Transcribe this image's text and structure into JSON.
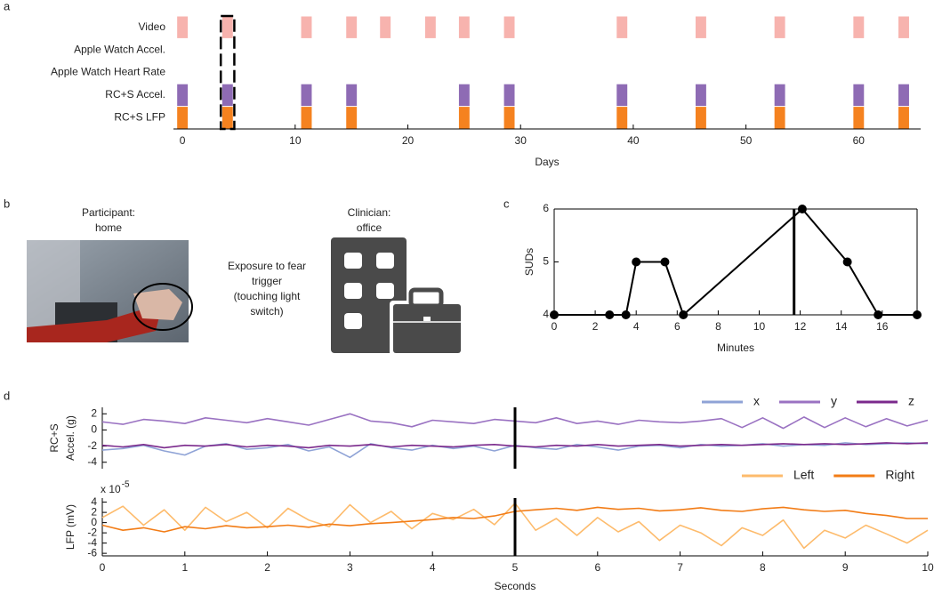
{
  "chart_data": [
    {
      "type": "timeline",
      "panel_label": "a",
      "xlabel": "Days",
      "series": [
        {
          "name": "Video",
          "color": "#f7b3ae",
          "values": [
            0,
            4,
            11,
            15,
            18,
            22,
            25,
            29,
            39,
            46,
            53,
            60,
            64
          ]
        },
        {
          "name": "Apple Watch Accel.",
          "color": "#9ec3e6",
          "values": []
        },
        {
          "name": "Apple Watch Heart Rate",
          "color": "#c00000",
          "values": []
        },
        {
          "name": "RC+S Accel.",
          "color": "#8e6bb4",
          "values": [
            0,
            4,
            11,
            15,
            25,
            29,
            39,
            46,
            53,
            60,
            64
          ]
        },
        {
          "name": "RC+S LFP",
          "color": "#f5821f",
          "values": [
            0,
            4,
            11,
            15,
            25,
            29,
            39,
            46,
            53,
            60,
            64
          ]
        }
      ],
      "highlight": 4,
      "xlim": [
        -0.8,
        65.5
      ],
      "xticks": [
        0,
        10,
        20,
        30,
        40,
        50,
        60
      ]
    },
    {
      "type": "line",
      "panel_label": "c",
      "xlabel": "Minutes",
      "ylabel": "SUDs",
      "markers": true,
      "color": "#000000",
      "x": [
        0,
        2.7,
        3.5,
        4,
        5.4,
        6.3,
        12.1,
        14.3,
        15.8,
        17.7
      ],
      "values": [
        4,
        4,
        4,
        5,
        5,
        4,
        6,
        5,
        4,
        4
      ],
      "marker_x": 11.7,
      "xlim": [
        0,
        17.7
      ],
      "xticks": [
        0,
        2,
        4,
        6,
        8,
        10,
        12,
        14,
        16
      ],
      "ylim": [
        4,
        6
      ],
      "yticks": [
        4,
        5,
        6
      ]
    },
    {
      "type": "line",
      "panel_label": "d",
      "ylabel": [
        "RC+S",
        "Accel. (g)"
      ],
      "legend": "top-right",
      "marker_x": 5,
      "x": [
        0,
        0.25,
        0.5,
        0.75,
        1,
        1.25,
        1.5,
        1.75,
        2,
        2.25,
        2.5,
        2.75,
        3,
        3.25,
        3.5,
        3.75,
        4,
        4.25,
        4.5,
        4.75,
        5,
        5.25,
        5.5,
        5.75,
        6,
        6.25,
        6.5,
        6.75,
        7,
        7.25,
        7.5,
        7.75,
        8,
        8.25,
        8.5,
        8.75,
        9,
        9.25,
        9.5,
        9.75,
        10
      ],
      "series": [
        {
          "name": "x",
          "color": "#8fa3d6",
          "values": [
            -2.5,
            -2.3,
            -1.9,
            -2.6,
            -3.1,
            -2.0,
            -1.7,
            -2.4,
            -2.2,
            -1.8,
            -2.6,
            -2.1,
            -3.4,
            -1.7,
            -2.2,
            -2.5,
            -1.9,
            -2.3,
            -2.0,
            -2.6,
            -1.9,
            -2.2,
            -2.4,
            -1.8,
            -2.1,
            -2.5,
            -2.0,
            -1.9,
            -2.2,
            -1.8,
            -2.0,
            -1.9,
            -1.7,
            -2.0,
            -1.8,
            -1.9,
            -1.6,
            -1.8,
            -1.7,
            -1.6,
            -1.7
          ]
        },
        {
          "name": "y",
          "color": "#9a72c2",
          "values": [
            1.0,
            0.7,
            1.3,
            1.1,
            0.8,
            1.5,
            1.2,
            0.9,
            1.4,
            1.0,
            0.6,
            1.3,
            2.0,
            1.1,
            0.9,
            0.4,
            1.2,
            1.0,
            0.8,
            1.3,
            1.1,
            0.9,
            1.5,
            0.8,
            1.1,
            0.7,
            1.2,
            1.0,
            0.9,
            1.1,
            1.4,
            0.3,
            1.5,
            0.2,
            1.6,
            0.3,
            1.5,
            0.4,
            1.4,
            0.5,
            1.2
          ]
        },
        {
          "name": "z",
          "color": "#7b2a8c",
          "values": [
            -1.9,
            -2.1,
            -1.8,
            -2.2,
            -1.9,
            -2.0,
            -1.8,
            -2.1,
            -1.9,
            -2.0,
            -2.2,
            -1.9,
            -2.0,
            -1.8,
            -2.1,
            -1.9,
            -2.0,
            -2.1,
            -1.9,
            -1.8,
            -2.0,
            -2.1,
            -1.9,
            -2.0,
            -1.8,
            -2.0,
            -1.9,
            -1.8,
            -2.0,
            -1.9,
            -1.8,
            -1.9,
            -1.8,
            -1.7,
            -1.8,
            -1.7,
            -1.8,
            -1.7,
            -1.6,
            -1.7,
            -1.6
          ]
        }
      ],
      "xlim": [
        0,
        10
      ],
      "ylim": [
        -4.8,
        2.8
      ],
      "yticks": [
        2,
        0,
        -2,
        -4
      ]
    },
    {
      "type": "line",
      "ylabel": "LFP (mV)",
      "xlabel": "Seconds",
      "y_scale": "x 10",
      "y_exponent": "-5",
      "legend": "top-right",
      "marker_x": 5,
      "x": [
        0,
        0.25,
        0.5,
        0.75,
        1,
        1.25,
        1.5,
        1.75,
        2,
        2.25,
        2.5,
        2.75,
        3,
        3.25,
        3.5,
        3.75,
        4,
        4.25,
        4.5,
        4.75,
        5,
        5.25,
        5.5,
        5.75,
        6,
        6.25,
        6.5,
        6.75,
        7,
        7.25,
        7.5,
        7.75,
        8,
        8.25,
        8.5,
        8.75,
        9,
        9.25,
        9.5,
        9.75,
        10
      ],
      "series": [
        {
          "name": "Left",
          "color": "#fdbb6c",
          "values": [
            1.0,
            3.2,
            -0.5,
            2.5,
            -1.5,
            3.0,
            0.2,
            2.0,
            -1.0,
            2.8,
            0.5,
            -0.8,
            3.5,
            0.0,
            2.2,
            -1.2,
            1.8,
            0.6,
            2.6,
            -0.4,
            3.8,
            -1.5,
            0.8,
            -2.5,
            1.0,
            -1.8,
            0.2,
            -3.5,
            -0.5,
            -2.0,
            -4.5,
            -1.0,
            -2.5,
            0.5,
            -5.0,
            -1.5,
            -3.0,
            -0.5,
            -2.2,
            -4.0,
            -1.5
          ]
        },
        {
          "name": "Right",
          "color": "#f27c16",
          "values": [
            -0.5,
            -1.5,
            -1.0,
            -1.8,
            -0.8,
            -1.2,
            -0.6,
            -1.0,
            -0.8,
            -0.5,
            -0.9,
            -0.3,
            -0.6,
            -0.2,
            0.0,
            0.3,
            0.6,
            1.0,
            0.8,
            1.3,
            2.2,
            2.5,
            2.8,
            2.4,
            3.0,
            2.6,
            2.8,
            2.3,
            2.5,
            2.9,
            2.4,
            2.2,
            2.7,
            3.0,
            2.5,
            2.2,
            2.4,
            1.8,
            1.4,
            0.8,
            0.8
          ]
        }
      ],
      "xlim": [
        0,
        10
      ],
      "xticks": [
        0,
        1,
        2,
        3,
        4,
        5,
        6,
        7,
        8,
        9,
        10
      ],
      "ylim": [
        -6.5,
        4.8
      ],
      "yticks": [
        4,
        2,
        0,
        -2,
        -4,
        -6
      ]
    }
  ],
  "illustration": {
    "panel_label": "b",
    "participant": [
      "Participant:",
      "home"
    ],
    "trigger": [
      "Exposure to fear",
      "trigger",
      "(touching light",
      "switch)"
    ],
    "clinician": [
      "Clinician:",
      "office"
    ]
  }
}
